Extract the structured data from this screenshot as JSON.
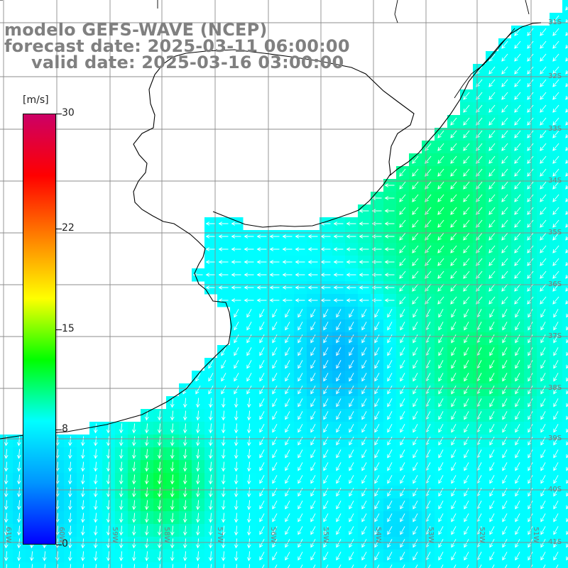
{
  "title": {
    "line1": "modelo GEFS-WAVE (NCEP)",
    "line2": "forecast date: 2025-03-11 06:00:00",
    "line3": "valid date: 2025-03-16 03:00:00"
  },
  "colorbar": {
    "unit": "[m/s]",
    "ticks": [
      "30",
      "22",
      "15",
      "8",
      "0"
    ],
    "tick_values": [
      30,
      22,
      15,
      8,
      0
    ],
    "stops": [
      "#0000ff",
      "#0096ff",
      "#00ffff",
      "#00ff00",
      "#ffff00",
      "#ff8000",
      "#ff0000",
      "#cc0066"
    ]
  },
  "lat_labels": [
    "31S",
    "32S",
    "33S",
    "34S",
    "35S",
    "36S",
    "37S",
    "38S",
    "39S",
    "40S",
    "41S"
  ],
  "lon_labels": [
    "61W",
    "60W",
    "59W",
    "58W",
    "57W",
    "56W",
    "55W",
    "54W",
    "53W",
    "52W",
    "51W"
  ],
  "colors": {
    "land": "#ffffff",
    "coast": "#000000",
    "grid": "#8c8c8c",
    "arrow": "#ffffff",
    "label": "#808080"
  }
}
